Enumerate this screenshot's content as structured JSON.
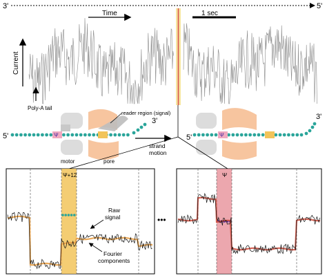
{
  "strand_top": {
    "left_label": "3'",
    "right_label": "5'"
  },
  "time_label": "Time",
  "scale_bar_label": "1 sec",
  "current_label": "Current",
  "poly_a_label": "Poly-A tail",
  "reader_label": "reader region (signal)",
  "molecule_left": {
    "five_prime": "5'",
    "three_prime": "3'",
    "mod_symbol": "Ψ"
  },
  "molecule_right": {
    "five_prime": "5'",
    "three_prime": "3'",
    "mod_symbol": "Ψ"
  },
  "strand_motion_label": "strand\nmotion",
  "motor_label": "motor",
  "pore_label": "pore",
  "panel_left": {
    "window_label": "Ψ+12",
    "raw_signal_label": "Raw\nsignal",
    "fourier_label": "Fourier\ncomponents"
  },
  "panel_right": {
    "window_label": "Ψ"
  },
  "ellipsis": "•••",
  "colors": {
    "trace": "#8a8a8a",
    "highlight_yellow": "#f2c45a",
    "highlight_red": "#e58a93",
    "teal": "#2aa59a",
    "mod_purple": "#4b2aa0",
    "protein": "#f7c59f",
    "motor": "#dcdcdc",
    "fourier_orange": "#e8a048",
    "fourier_red": "#d04a3a"
  }
}
